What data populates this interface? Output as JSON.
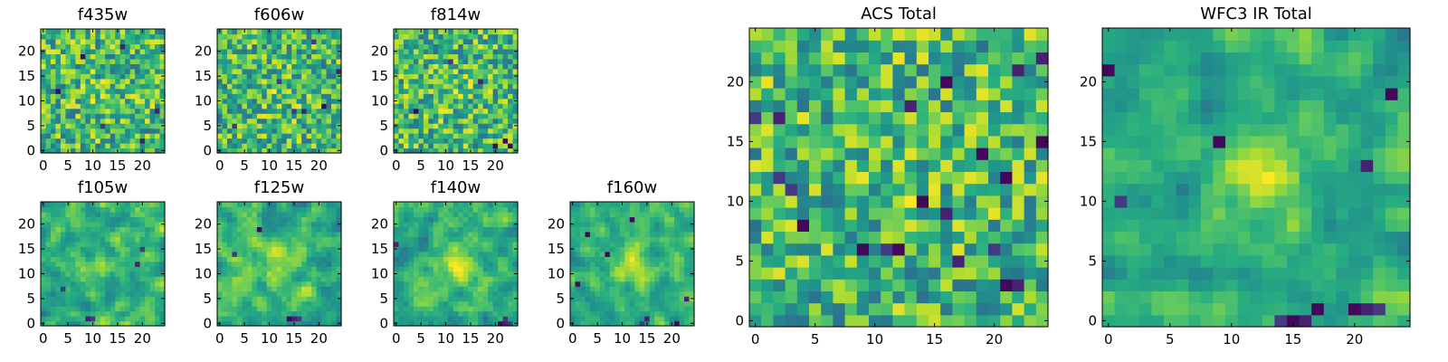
{
  "chart_data": [
    {
      "type": "heatmap",
      "title": "f435w",
      "size": 25,
      "seed": 11,
      "blob": 0.1,
      "smooth": 0,
      "dark": [
        [
          8,
          19
        ],
        [
          12,
          5
        ],
        [
          3,
          12
        ],
        [
          20,
          2
        ],
        [
          23,
          8
        ],
        [
          16,
          21
        ]
      ],
      "xticks": [
        0,
        5,
        10,
        15,
        20
      ],
      "yticks": [
        0,
        5,
        10,
        15,
        20
      ],
      "colormap": "viridis"
    },
    {
      "type": "heatmap",
      "title": "f606w",
      "size": 25,
      "seed": 23,
      "blob": 0.12,
      "smooth": 0,
      "dark": [
        [
          19,
          22
        ],
        [
          24,
          16
        ],
        [
          17,
          8
        ],
        [
          21,
          9
        ],
        [
          15,
          8
        ],
        [
          3,
          5
        ],
        [
          12,
          14
        ]
      ],
      "xticks": [
        0,
        5,
        10,
        15,
        20
      ],
      "yticks": [
        0,
        5,
        10,
        15,
        20
      ],
      "colormap": "viridis"
    },
    {
      "type": "heatmap",
      "title": "f814w",
      "size": 25,
      "seed": 37,
      "blob": 0.1,
      "smooth": 0,
      "dark": [
        [
          23,
          1
        ],
        [
          22,
          2
        ],
        [
          20,
          1
        ],
        [
          4,
          8
        ],
        [
          11,
          18
        ],
        [
          17,
          14
        ]
      ],
      "xticks": [
        0,
        5,
        10,
        15,
        20
      ],
      "yticks": [
        0,
        5,
        10,
        15,
        20
      ],
      "colormap": "viridis"
    },
    {
      "type": "heatmap",
      "title": "f105w",
      "size": 25,
      "seed": 41,
      "blob": 0.2,
      "smooth": 1,
      "dark": [
        [
          9,
          1
        ],
        [
          10,
          1
        ],
        [
          4,
          7
        ],
        [
          19,
          12
        ],
        [
          20,
          15
        ]
      ],
      "xticks": [
        0,
        5,
        10,
        15,
        20
      ],
      "yticks": [
        0,
        5,
        10,
        15,
        20
      ],
      "colormap": "viridis"
    },
    {
      "type": "heatmap",
      "title": "f125w",
      "size": 25,
      "seed": 53,
      "blob": 0.28,
      "smooth": 1,
      "dark": [
        [
          14,
          1
        ],
        [
          15,
          1
        ],
        [
          16,
          1
        ],
        [
          8,
          19
        ],
        [
          3,
          14
        ]
      ],
      "xticks": [
        0,
        5,
        10,
        15,
        20
      ],
      "yticks": [
        0,
        5,
        10,
        15,
        20
      ],
      "colormap": "viridis"
    },
    {
      "type": "heatmap",
      "title": "f140w",
      "size": 25,
      "seed": 67,
      "blob": 0.45,
      "smooth": 1,
      "dark": [
        [
          21,
          0
        ],
        [
          22,
          0
        ],
        [
          23,
          0
        ],
        [
          22,
          1
        ],
        [
          0,
          16
        ]
      ],
      "xticks": [
        0,
        5,
        10,
        15,
        20
      ],
      "yticks": [
        0,
        5,
        10,
        15,
        20
      ],
      "colormap": "viridis"
    },
    {
      "type": "heatmap",
      "title": "f160w",
      "size": 25,
      "seed": 79,
      "blob": 0.45,
      "smooth": 1,
      "dark": [
        [
          14,
          0
        ],
        [
          15,
          1
        ],
        [
          21,
          0
        ],
        [
          3,
          18
        ],
        [
          7,
          14
        ],
        [
          23,
          5
        ],
        [
          1,
          8
        ],
        [
          12,
          21
        ]
      ],
      "xticks": [
        0,
        5,
        10,
        15,
        20
      ],
      "yticks": [
        0,
        5,
        10,
        15,
        20
      ],
      "colormap": "viridis"
    },
    {
      "type": "heatmap",
      "title": "ACS Total",
      "size": 25,
      "seed": 91,
      "blob": 0.1,
      "smooth": 0,
      "dark": [
        [
          0,
          17
        ],
        [
          2,
          17
        ],
        [
          21,
          3
        ],
        [
          22,
          3
        ],
        [
          17,
          5
        ],
        [
          4,
          8
        ],
        [
          16,
          9
        ],
        [
          14,
          10
        ],
        [
          12,
          6
        ],
        [
          9,
          6
        ],
        [
          11,
          6
        ],
        [
          20,
          6
        ],
        [
          3,
          11
        ],
        [
          13,
          18
        ],
        [
          16,
          20
        ],
        [
          19,
          14
        ],
        [
          21,
          12
        ],
        [
          24,
          15
        ],
        [
          22,
          21
        ],
        [
          24,
          22
        ],
        [
          2,
          12
        ]
      ],
      "xticks": [
        0,
        5,
        10,
        15,
        20
      ],
      "yticks": [
        0,
        5,
        10,
        15,
        20
      ],
      "colormap": "viridis"
    },
    {
      "type": "heatmap",
      "title": "WFC3 IR Total",
      "size": 25,
      "seed": 103,
      "blob": 0.5,
      "smooth": 1,
      "dark": [
        [
          14,
          0
        ],
        [
          15,
          0
        ],
        [
          16,
          0
        ],
        [
          17,
          1
        ],
        [
          20,
          1
        ],
        [
          21,
          1
        ],
        [
          22,
          1
        ],
        [
          9,
          15
        ],
        [
          21,
          13
        ],
        [
          23,
          19
        ],
        [
          0,
          21
        ],
        [
          1,
          10
        ]
      ],
      "xticks": [
        0,
        5,
        10,
        15,
        20
      ],
      "yticks": [
        0,
        5,
        10,
        15,
        20
      ],
      "colormap": "viridis"
    }
  ]
}
